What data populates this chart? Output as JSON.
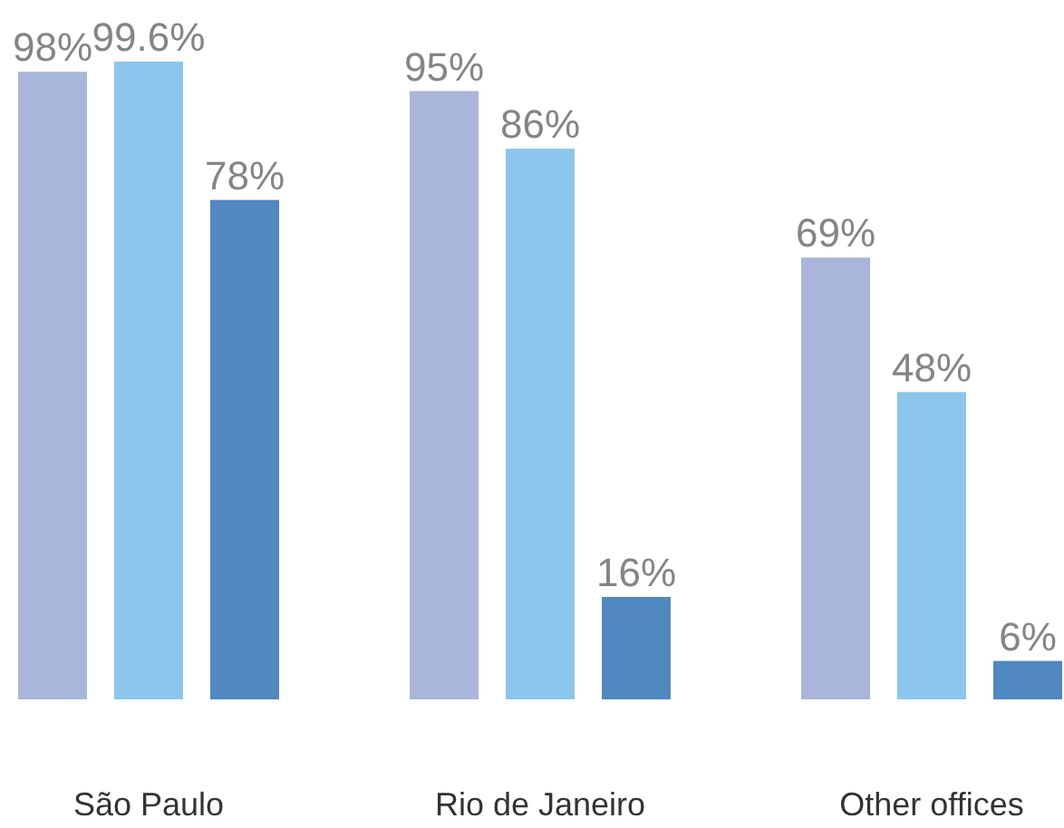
{
  "chart_data": {
    "type": "bar",
    "categories": [
      "São Paulo",
      "Rio de Janeiro",
      "Other offices"
    ],
    "series": [
      {
        "color": "#a9b5db",
        "values": [
          98,
          95,
          69
        ],
        "value_labels": [
          "98%",
          "95%",
          "69%"
        ]
      },
      {
        "color": "#8cc6ec",
        "values": [
          99.6,
          86,
          48
        ],
        "value_labels": [
          "99.6%",
          "86%",
          "48%"
        ]
      },
      {
        "color": "#5088c0",
        "values": [
          78,
          16,
          6
        ],
        "value_labels": [
          "78%",
          "16%",
          "6%"
        ]
      }
    ]
  }
}
